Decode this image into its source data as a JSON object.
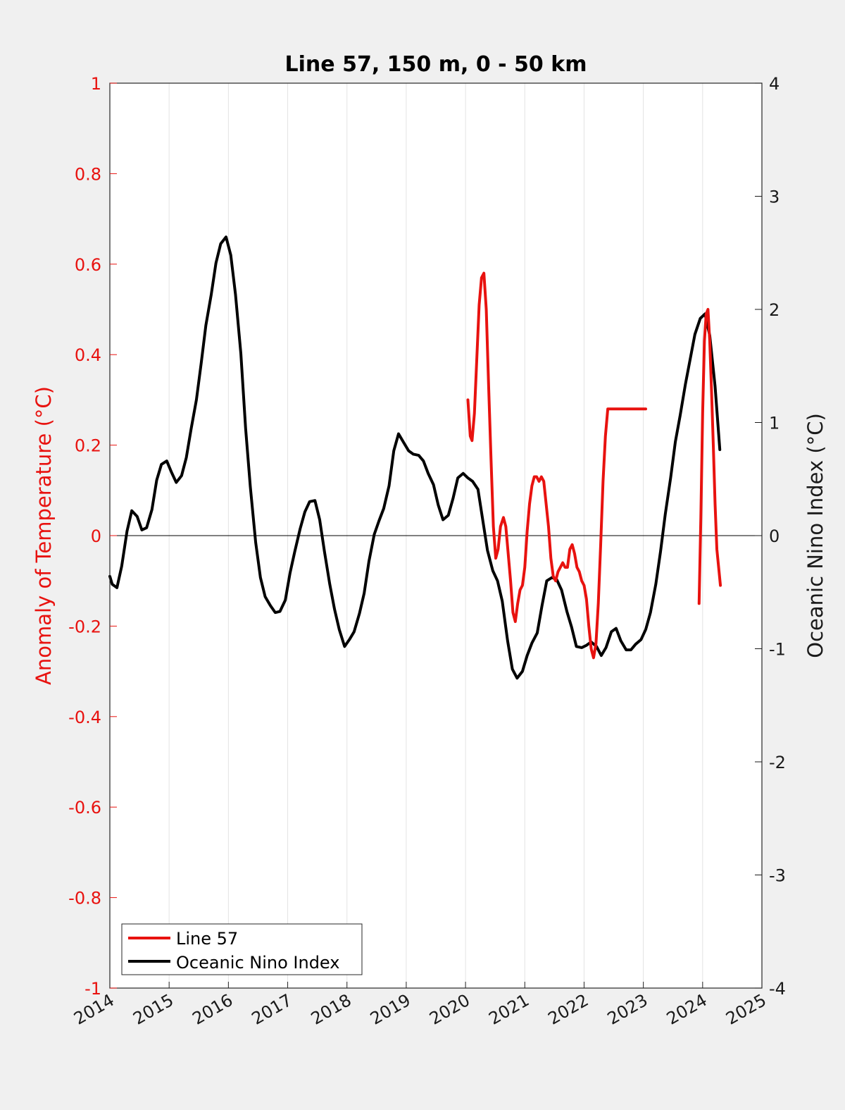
{
  "chart_data": {
    "type": "line",
    "title": "Line 57, 150 m, 0 - 50 km",
    "xlabel": "",
    "ylabel_left": "Anomaly of Temperature (°C)",
    "ylabel_right": "Oceanic Nino Index (°C)",
    "xlim": [
      2014,
      2025
    ],
    "ylim_left": [
      -1,
      1
    ],
    "ylim_right": [
      -4,
      4
    ],
    "x_ticks": [
      "2014",
      "2015",
      "2016",
      "2017",
      "2018",
      "2019",
      "2020",
      "2021",
      "2022",
      "2023",
      "2024",
      "2025"
    ],
    "y_left_ticks": [
      "1",
      "0.8",
      "0.6",
      "0.4",
      "0.2",
      "0",
      "-0.2",
      "-0.4",
      "-0.6",
      "-0.8",
      "-1"
    ],
    "y_right_ticks": [
      "4",
      "3",
      "2",
      "1",
      "0",
      "-1",
      "-2",
      "-3",
      "-4"
    ],
    "grid": "vertical",
    "zero_line": true,
    "legend_position": "bottom-left",
    "colors": {
      "line57": "#e8120f",
      "oni": "#000000",
      "left_axis": "#e8120f",
      "right_axis": "#1a1a1a",
      "grid": "#e3e3e3",
      "figure_bg": "#f0f0f0",
      "axes_bg": "#ffffff"
    },
    "series": [
      {
        "name": "Line 57",
        "axis": "left",
        "segments": [
          {
            "x": [
              2020.04,
              2020.08,
              2020.11,
              2020.15,
              2020.19,
              2020.23,
              2020.27,
              2020.31,
              2020.35,
              2020.39,
              2020.43,
              2020.47,
              2020.51,
              2020.55,
              2020.59,
              2020.64,
              2020.68,
              2020.72,
              2020.76,
              2020.8,
              2020.84,
              2020.88,
              2020.92,
              2020.96,
              2021.0,
              2021.04,
              2021.08,
              2021.12,
              2021.16,
              2021.2,
              2021.24,
              2021.28,
              2021.32,
              2021.36,
              2021.4,
              2021.44,
              2021.48,
              2021.52,
              2021.56,
              2021.6,
              2021.64,
              2021.68,
              2021.72,
              2021.76,
              2021.8,
              2021.84,
              2021.88,
              2021.92,
              2021.96,
              2022.0,
              2022.04,
              2022.08,
              2022.12,
              2022.16,
              2022.2,
              2022.24,
              2022.28,
              2022.32,
              2022.36,
              2022.4,
              2022.44,
              2022.48,
              2022.52,
              2022.56,
              2022.6,
              2022.64,
              2022.68,
              2022.72,
              2022.76,
              2022.8,
              2022.84,
              2022.88,
              2022.92,
              2022.96,
              2023.0,
              2023.04
            ],
            "y": [
              0.3,
              0.22,
              0.21,
              0.27,
              0.39,
              0.51,
              0.57,
              0.58,
              0.5,
              0.33,
              0.17,
              0.02,
              -0.05,
              -0.03,
              0.02,
              0.04,
              0.02,
              -0.04,
              -0.1,
              -0.17,
              -0.19,
              -0.15,
              -0.12,
              -0.11,
              -0.07,
              0.01,
              0.07,
              0.11,
              0.13,
              0.13,
              0.12,
              0.13,
              0.12,
              0.07,
              0.02,
              -0.05,
              -0.09,
              -0.1,
              -0.08,
              -0.07,
              -0.06,
              -0.07,
              -0.07,
              -0.03,
              -0.02,
              -0.04,
              -0.07,
              -0.08,
              -0.1,
              -0.11,
              -0.14,
              -0.2,
              -0.25,
              -0.27,
              -0.24,
              -0.15,
              -0.02,
              0.12,
              0.22,
              0.28,
              0.28,
              0.28,
              0.28,
              0.28,
              0.28,
              0.28,
              0.28,
              0.28,
              0.28,
              0.28,
              0.28,
              0.28,
              0.28,
              0.28,
              0.28,
              0.28
            ]
          },
          {
            "x": [
              2023.94,
              2023.97,
              2024.0,
              2024.03,
              2024.06,
              2024.09,
              2024.12,
              2024.15,
              2024.18,
              2024.21,
              2024.24,
              2024.27,
              2024.3
            ],
            "y": [
              -0.15,
              0.04,
              0.27,
              0.43,
              0.49,
              0.5,
              0.43,
              0.32,
              0.2,
              0.07,
              -0.03,
              -0.07,
              -0.11
            ]
          }
        ]
      },
      {
        "name": "Oceanic Nino Index",
        "axis": "right",
        "x": [
          2014.0,
          2014.04,
          2014.12,
          2014.2,
          2014.29,
          2014.37,
          2014.46,
          2014.54,
          2014.62,
          2014.71,
          2014.79,
          2014.87,
          2014.96,
          2015.04,
          2015.12,
          2015.21,
          2015.29,
          2015.37,
          2015.46,
          2015.54,
          2015.62,
          2015.71,
          2015.79,
          2015.87,
          2015.96,
          2016.04,
          2016.12,
          2016.21,
          2016.29,
          2016.37,
          2016.46,
          2016.54,
          2016.62,
          2016.71,
          2016.79,
          2016.87,
          2016.96,
          2017.04,
          2017.12,
          2017.21,
          2017.29,
          2017.37,
          2017.46,
          2017.54,
          2017.62,
          2017.71,
          2017.79,
          2017.87,
          2017.96,
          2018.04,
          2018.12,
          2018.21,
          2018.29,
          2018.37,
          2018.46,
          2018.54,
          2018.62,
          2018.71,
          2018.79,
          2018.87,
          2018.96,
          2019.04,
          2019.12,
          2019.21,
          2019.29,
          2019.37,
          2019.46,
          2019.54,
          2019.62,
          2019.71,
          2019.79,
          2019.87,
          2019.96,
          2020.04,
          2020.12,
          2020.21,
          2020.29,
          2020.37,
          2020.46,
          2020.54,
          2020.62,
          2020.71,
          2020.79,
          2020.87,
          2020.96,
          2021.04,
          2021.12,
          2021.21,
          2021.29,
          2021.37,
          2021.46,
          2021.54,
          2021.62,
          2021.71,
          2021.79,
          2021.87,
          2021.96,
          2022.04,
          2022.12,
          2022.21,
          2022.29,
          2022.37,
          2022.46,
          2022.54,
          2022.62,
          2022.71,
          2022.79,
          2022.87,
          2022.96,
          2023.04,
          2023.12,
          2023.21,
          2023.29,
          2023.37,
          2023.46,
          2023.54,
          2023.62,
          2023.71,
          2023.79,
          2023.87,
          2023.96,
          2024.04,
          2024.12,
          2024.21,
          2024.29
        ],
        "y": [
          -0.36,
          -0.43,
          -0.46,
          -0.27,
          0.04,
          0.22,
          0.17,
          0.05,
          0.07,
          0.23,
          0.49,
          0.63,
          0.66,
          0.56,
          0.47,
          0.53,
          0.69,
          0.94,
          1.2,
          1.52,
          1.86,
          2.13,
          2.41,
          2.58,
          2.64,
          2.48,
          2.13,
          1.61,
          0.95,
          0.43,
          -0.06,
          -0.37,
          -0.54,
          -0.62,
          -0.68,
          -0.67,
          -0.57,
          -0.33,
          -0.14,
          0.06,
          0.21,
          0.3,
          0.31,
          0.14,
          -0.14,
          -0.43,
          -0.65,
          -0.83,
          -0.98,
          -0.92,
          -0.85,
          -0.69,
          -0.51,
          -0.23,
          0.01,
          0.13,
          0.24,
          0.44,
          0.75,
          0.9,
          0.82,
          0.75,
          0.72,
          0.71,
          0.66,
          0.55,
          0.45,
          0.27,
          0.14,
          0.18,
          0.33,
          0.51,
          0.55,
          0.51,
          0.48,
          0.41,
          0.14,
          -0.13,
          -0.31,
          -0.4,
          -0.58,
          -0.93,
          -1.18,
          -1.26,
          -1.2,
          -1.06,
          -0.95,
          -0.86,
          -0.62,
          -0.4,
          -0.37,
          -0.39,
          -0.48,
          -0.67,
          -0.81,
          -0.98,
          -0.99,
          -0.97,
          -0.94,
          -0.98,
          -1.06,
          -0.99,
          -0.85,
          -0.82,
          -0.93,
          -1.01,
          -1.01,
          -0.96,
          -0.92,
          -0.83,
          -0.68,
          -0.43,
          -0.14,
          0.19,
          0.51,
          0.83,
          1.06,
          1.34,
          1.56,
          1.78,
          1.92,
          1.96,
          1.77,
          1.32,
          0.76
        ]
      }
    ]
  }
}
